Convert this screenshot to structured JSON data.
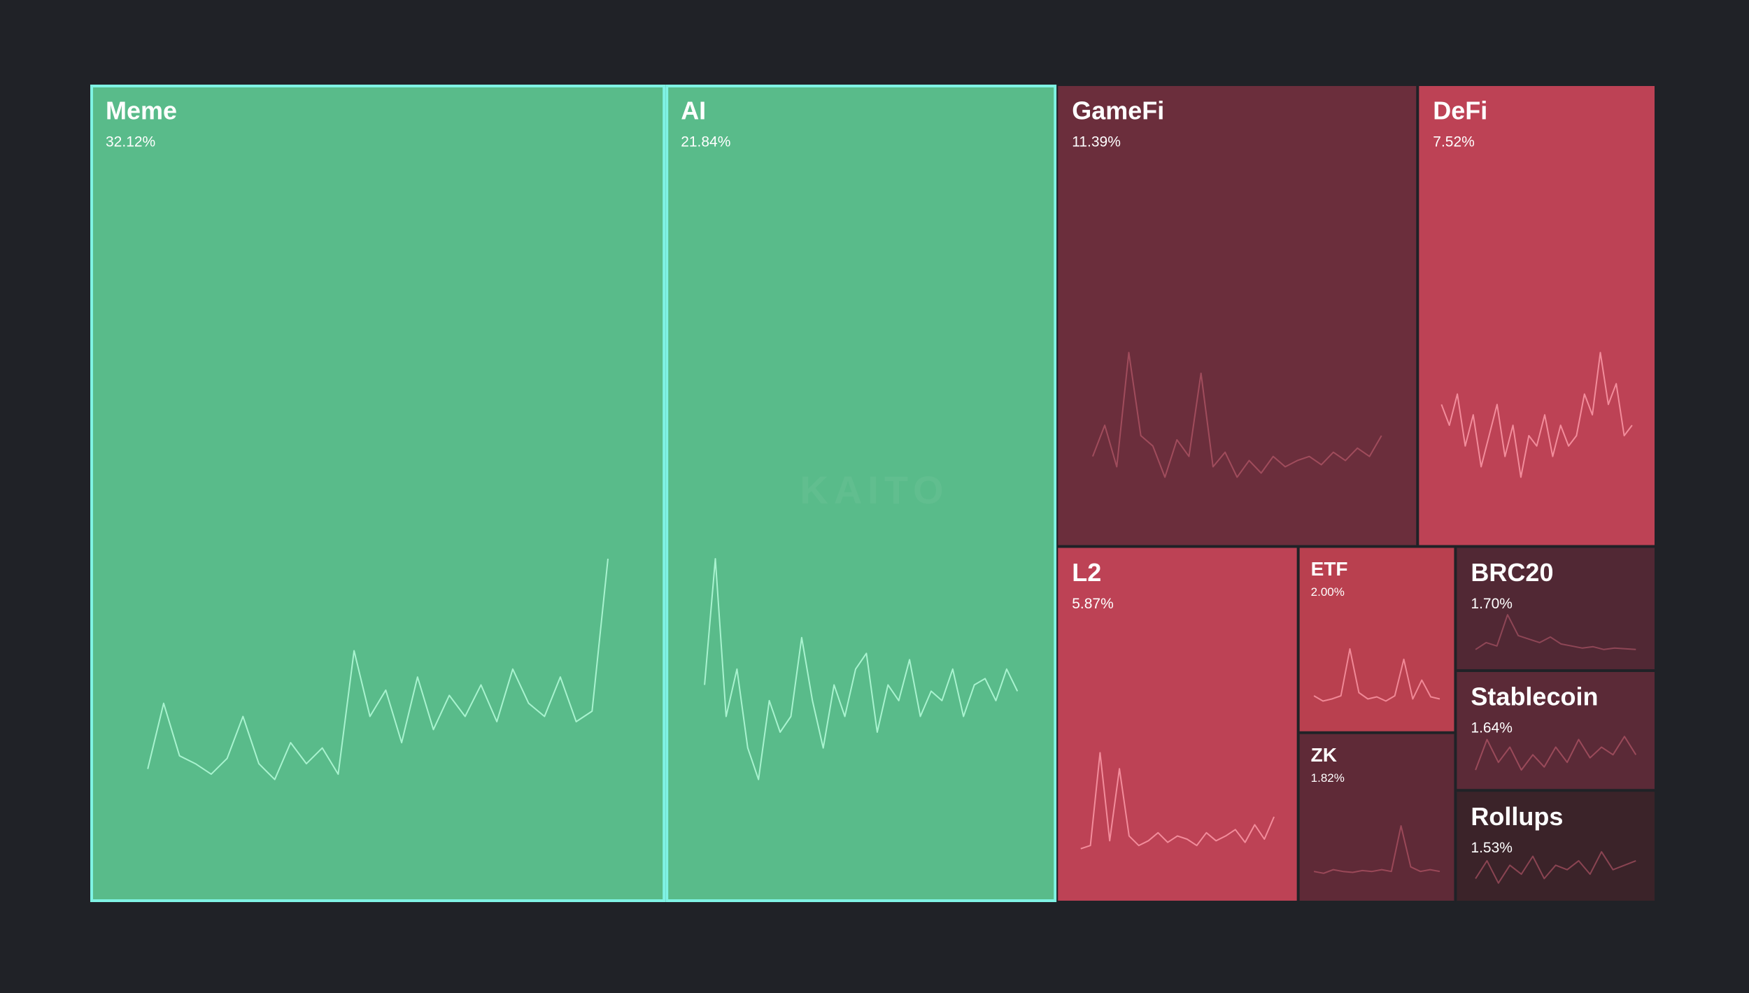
{
  "chart_data": {
    "type": "treemap",
    "watermark": "KAITO",
    "categories": [
      "Meme",
      "AI",
      "GameFi",
      "DeFi",
      "L2",
      "ETF",
      "ZK",
      "BRC20",
      "Stablecoin",
      "Rollups"
    ],
    "values": [
      32.12,
      21.84,
      11.39,
      7.52,
      5.87,
      2.0,
      1.82,
      1.7,
      1.64,
      1.53
    ],
    "value_labels": [
      "32.12%",
      "21.84%",
      "11.39%",
      "7.52%",
      "5.87%",
      "2.00%",
      "1.82%",
      "1.70%",
      "1.64%",
      "1.53%"
    ],
    "colors": [
      "#59bb8a",
      "#59bb8a",
      "#6b2e3c",
      "#bd4255",
      "#bd4255",
      "#b9404f",
      "#5f2a37",
      "#512834",
      "#5b2a37",
      "#3b2329"
    ],
    "border_colors": [
      "#7ff3e4",
      "#7ff3e4",
      "#202227",
      "#202227",
      "#202227",
      "#202227",
      "#202227",
      "#202227",
      "#202227",
      "#202227"
    ],
    "sparkline_colors": [
      "#a8f3cf",
      "#a8f3cf",
      "#a04c5c",
      "#f28c9b",
      "#f28c9b",
      "#f08896",
      "#9a4858",
      "#8e4656",
      "#9a4a5a",
      "#8a4452"
    ],
    "sparklines": [
      [
        10,
        35,
        15,
        12,
        8,
        14,
        30,
        12,
        6,
        20,
        12,
        18,
        8,
        55,
        30,
        40,
        20,
        45,
        25,
        38,
        30,
        42,
        28,
        48,
        35,
        30,
        45,
        28,
        32,
        90
      ],
      [
        40,
        80,
        30,
        45,
        20,
        10,
        35,
        25,
        30,
        55,
        35,
        20,
        40,
        30,
        45,
        50,
        25,
        40,
        35,
        48,
        30,
        38,
        35,
        45,
        30,
        40,
        42,
        35,
        45,
        38
      ],
      [
        20,
        35,
        15,
        70,
        30,
        25,
        10,
        28,
        20,
        60,
        15,
        22,
        10,
        18,
        12,
        20,
        15,
        18,
        20,
        16,
        22,
        18,
        24,
        20,
        30
      ],
      [
        55,
        45,
        60,
        35,
        50,
        25,
        40,
        55,
        30,
        45,
        20,
        40,
        35,
        50,
        30,
        45,
        35,
        40,
        60,
        50,
        80,
        55,
        65,
        40,
        45
      ],
      [
        10,
        12,
        70,
        15,
        60,
        18,
        12,
        15,
        20,
        14,
        18,
        16,
        12,
        20,
        15,
        18,
        22,
        14,
        25,
        16,
        30
      ],
      [
        15,
        10,
        12,
        15,
        60,
        18,
        12,
        14,
        10,
        15,
        50,
        12,
        30,
        14,
        12
      ],
      [
        10,
        8,
        12,
        10,
        9,
        11,
        10,
        12,
        10,
        60,
        15,
        10,
        12,
        10
      ],
      [
        20,
        30,
        25,
        70,
        40,
        35,
        30,
        38,
        28,
        25,
        22,
        24,
        20,
        22,
        21,
        20
      ],
      [
        40,
        60,
        45,
        55,
        40,
        50,
        42,
        55,
        45,
        60,
        48,
        55,
        50,
        62,
        50
      ],
      [
        40,
        60,
        35,
        55,
        45,
        65,
        40,
        55,
        50,
        60,
        45,
        70,
        50,
        55,
        60
      ]
    ]
  }
}
